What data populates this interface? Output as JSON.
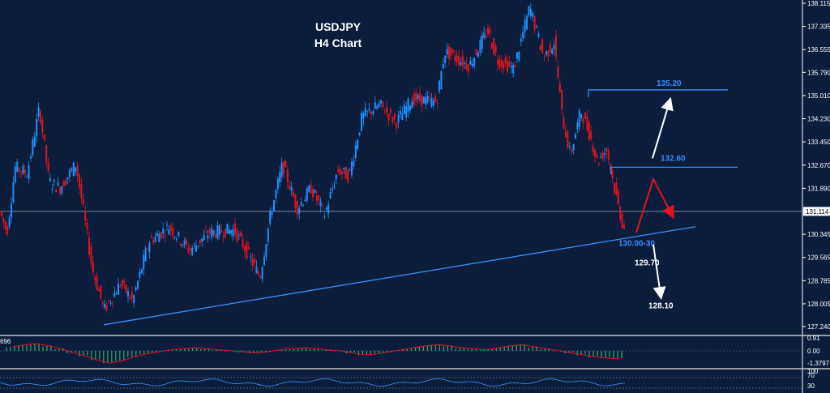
{
  "chart_data": {
    "type": "candlestick",
    "title": "USDJPY",
    "subtitle": "H4 Chart",
    "y_axis": {
      "ticks": [
        "138.115",
        "137.335",
        "136.555",
        "135.790",
        "135.010",
        "134.230",
        "133.450",
        "132.670",
        "131.890",
        "131.114",
        "130.345",
        "129.565",
        "128.785",
        "128.005",
        "127.240"
      ],
      "ylim": [
        127.0,
        138.2
      ]
    },
    "current_price": "131.114",
    "price_path": [
      {
        "x": 0,
        "y": 131.2
      },
      {
        "x": 10,
        "y": 130.4
      },
      {
        "x": 20,
        "y": 132.6
      },
      {
        "x": 35,
        "y": 132.4
      },
      {
        "x": 50,
        "y": 134.6
      },
      {
        "x": 62,
        "y": 132.1
      },
      {
        "x": 75,
        "y": 131.9
      },
      {
        "x": 95,
        "y": 132.7
      },
      {
        "x": 105,
        "y": 131.0
      },
      {
        "x": 115,
        "y": 129.2
      },
      {
        "x": 130,
        "y": 127.8
      },
      {
        "x": 150,
        "y": 128.7
      },
      {
        "x": 165,
        "y": 128.1
      },
      {
        "x": 185,
        "y": 130.1
      },
      {
        "x": 210,
        "y": 130.6
      },
      {
        "x": 235,
        "y": 129.8
      },
      {
        "x": 260,
        "y": 130.4
      },
      {
        "x": 290,
        "y": 130.5
      },
      {
        "x": 305,
        "y": 129.8
      },
      {
        "x": 322,
        "y": 128.9
      },
      {
        "x": 335,
        "y": 131.0
      },
      {
        "x": 350,
        "y": 132.7
      },
      {
        "x": 368,
        "y": 131.2
      },
      {
        "x": 385,
        "y": 131.9
      },
      {
        "x": 402,
        "y": 131.0
      },
      {
        "x": 418,
        "y": 132.5
      },
      {
        "x": 432,
        "y": 132.3
      },
      {
        "x": 448,
        "y": 134.3
      },
      {
        "x": 470,
        "y": 134.7
      },
      {
        "x": 490,
        "y": 134.1
      },
      {
        "x": 510,
        "y": 134.9
      },
      {
        "x": 540,
        "y": 134.8
      },
      {
        "x": 550,
        "y": 136.5
      },
      {
        "x": 580,
        "y": 136.0
      },
      {
        "x": 603,
        "y": 137.2
      },
      {
        "x": 615,
        "y": 136.2
      },
      {
        "x": 635,
        "y": 135.9
      },
      {
        "x": 655,
        "y": 138.0
      },
      {
        "x": 672,
        "y": 136.3
      },
      {
        "x": 685,
        "y": 136.8
      },
      {
        "x": 695,
        "y": 134.3
      },
      {
        "x": 705,
        "y": 133.0
      },
      {
        "x": 718,
        "y": 134.5
      },
      {
        "x": 730,
        "y": 133.6
      },
      {
        "x": 738,
        "y": 132.8
      },
      {
        "x": 750,
        "y": 133.2
      },
      {
        "x": 760,
        "y": 131.8
      },
      {
        "x": 770,
        "y": 130.6
      }
    ],
    "resistance_lines": [
      {
        "label": "135.20",
        "value": 135.2
      },
      {
        "label": "132.60",
        "value": 132.6
      }
    ],
    "trendline": {
      "from": {
        "x": 128,
        "y": 127.3
      },
      "to": {
        "x": 858,
        "y": 130.6
      }
    },
    "level_labels": [
      {
        "text": "130.00-30",
        "color": "blue"
      },
      {
        "text": "129.70",
        "color": "white"
      },
      {
        "text": "128.10",
        "color": "white"
      }
    ],
    "scenario": {
      "bullish": {
        "from": {
          "x": 805,
          "y": 132.9
        },
        "to": {
          "x": 826,
          "y": 134.8
        }
      },
      "bearish_path": [
        {
          "x": 785,
          "y": 130.4
        },
        {
          "x": 806,
          "y": 132.2
        },
        {
          "x": 829,
          "y": 131.0
        }
      ],
      "drop": {
        "from": {
          "x": 806,
          "y": 130.0
        },
        "to": {
          "x": 815,
          "y": 128.3
        }
      }
    },
    "oscillator": {
      "ticks": [
        "0.91",
        "0.00",
        "-1.3797"
      ],
      "left_label": "696",
      "histogram": [
        0.4,
        0.6,
        0.7,
        0.5,
        0.2,
        -0.2,
        -0.5,
        -0.9,
        -1.2,
        -1.0,
        -0.6,
        -0.3,
        -0.1,
        0.1,
        0.2,
        0.3,
        0.2,
        0.1,
        0.0,
        -0.1,
        -0.2,
        -0.1,
        0.1,
        0.2,
        0.3,
        0.2,
        0.1,
        0.0,
        -0.2,
        -0.4,
        -0.3,
        -0.1,
        0.1,
        0.3,
        0.5,
        0.6,
        0.5,
        0.3,
        0.2,
        0.1,
        0.3,
        0.5,
        0.6,
        0.4,
        0.2,
        0.0,
        -0.2,
        -0.4,
        -0.6,
        -0.7,
        -0.8
      ]
    },
    "rsi": {
      "ticks": [
        "100",
        "70",
        "30"
      ]
    },
    "grid": false,
    "colors": {
      "bull": "#1e90ff",
      "bear": "#e0141e",
      "line": "#3d8bff",
      "arrow_white": "#ffffff",
      "arrow_red": "#e0141e",
      "osc_green": "#3cb371",
      "bg": "#0b1d3a"
    }
  }
}
